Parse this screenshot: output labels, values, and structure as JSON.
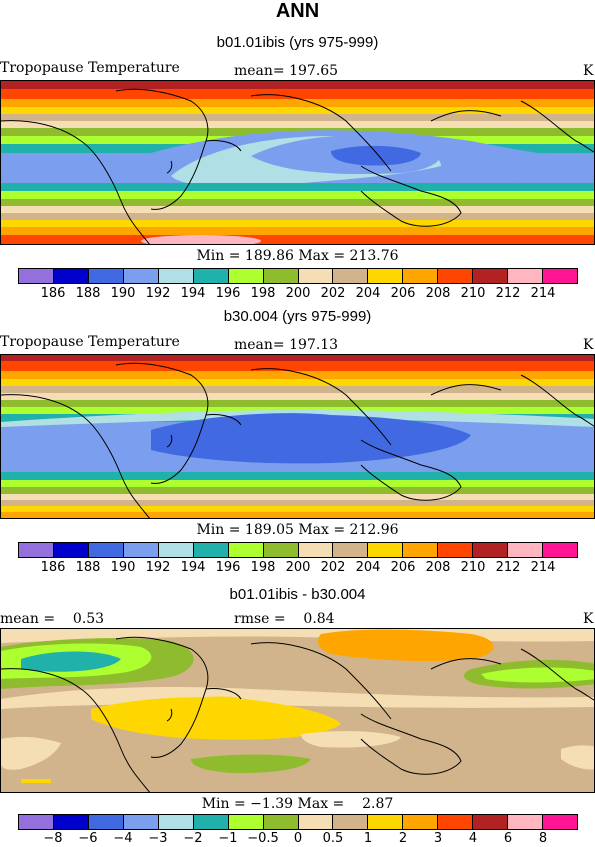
{
  "title": "ANN",
  "panels": [
    {
      "subtitle": "b01.01ibis (yrs 975-999)",
      "left_label": "Tropopause Temperature",
      "mean_label": "mean= 197.65",
      "unit": "K",
      "minmax": "Min = 189.86 Max = 213.76",
      "ticks": [
        "186",
        "188",
        "190",
        "192",
        "194",
        "196",
        "198",
        "200",
        "202",
        "204",
        "206",
        "208",
        "210",
        "212",
        "214"
      ],
      "colors": [
        "#9370db",
        "#0000cd",
        "#4169e1",
        "#7b9eee",
        "#b0e0e6",
        "#20b2aa",
        "#adff2f",
        "#8fbc2f",
        "#f5deb3",
        "#d2b48c",
        "#ffd700",
        "#ffa500",
        "#ff4500",
        "#b22222",
        "#ffb6c1",
        "#ff1493"
      ]
    },
    {
      "subtitle": "b30.004 (yrs 975-999)",
      "left_label": "Tropopause Temperature",
      "mean_label": "mean= 197.13",
      "unit": "K",
      "minmax": "Min = 189.05 Max = 212.96",
      "ticks": [
        "186",
        "188",
        "190",
        "192",
        "194",
        "196",
        "198",
        "200",
        "202",
        "204",
        "206",
        "208",
        "210",
        "212",
        "214"
      ],
      "colors": [
        "#9370db",
        "#0000cd",
        "#4169e1",
        "#7b9eee",
        "#b0e0e6",
        "#20b2aa",
        "#adff2f",
        "#8fbc2f",
        "#f5deb3",
        "#d2b48c",
        "#ffd700",
        "#ffa500",
        "#ff4500",
        "#b22222",
        "#ffb6c1",
        "#ff1493"
      ]
    },
    {
      "subtitle": "b01.01ibis - b30.004",
      "left_label": "mean =    0.53",
      "mean_label": "rmse =    0.84",
      "unit": "K",
      "minmax": "Min = −1.39 Max =    2.87",
      "ticks": [
        "−8",
        "−6",
        "−4",
        "−3",
        "−2",
        "−1",
        "−0.5",
        "0",
        "0.5",
        "1",
        "2",
        "3",
        "4",
        "6",
        "8"
      ],
      "colors": [
        "#9370db",
        "#0000cd",
        "#4169e1",
        "#7b9eee",
        "#b0e0e6",
        "#20b2aa",
        "#adff2f",
        "#8fbc2f",
        "#f5deb3",
        "#d2b48c",
        "#ffd700",
        "#ffa500",
        "#ff4500",
        "#b22222",
        "#ffb6c1",
        "#ff1493"
      ]
    }
  ]
}
